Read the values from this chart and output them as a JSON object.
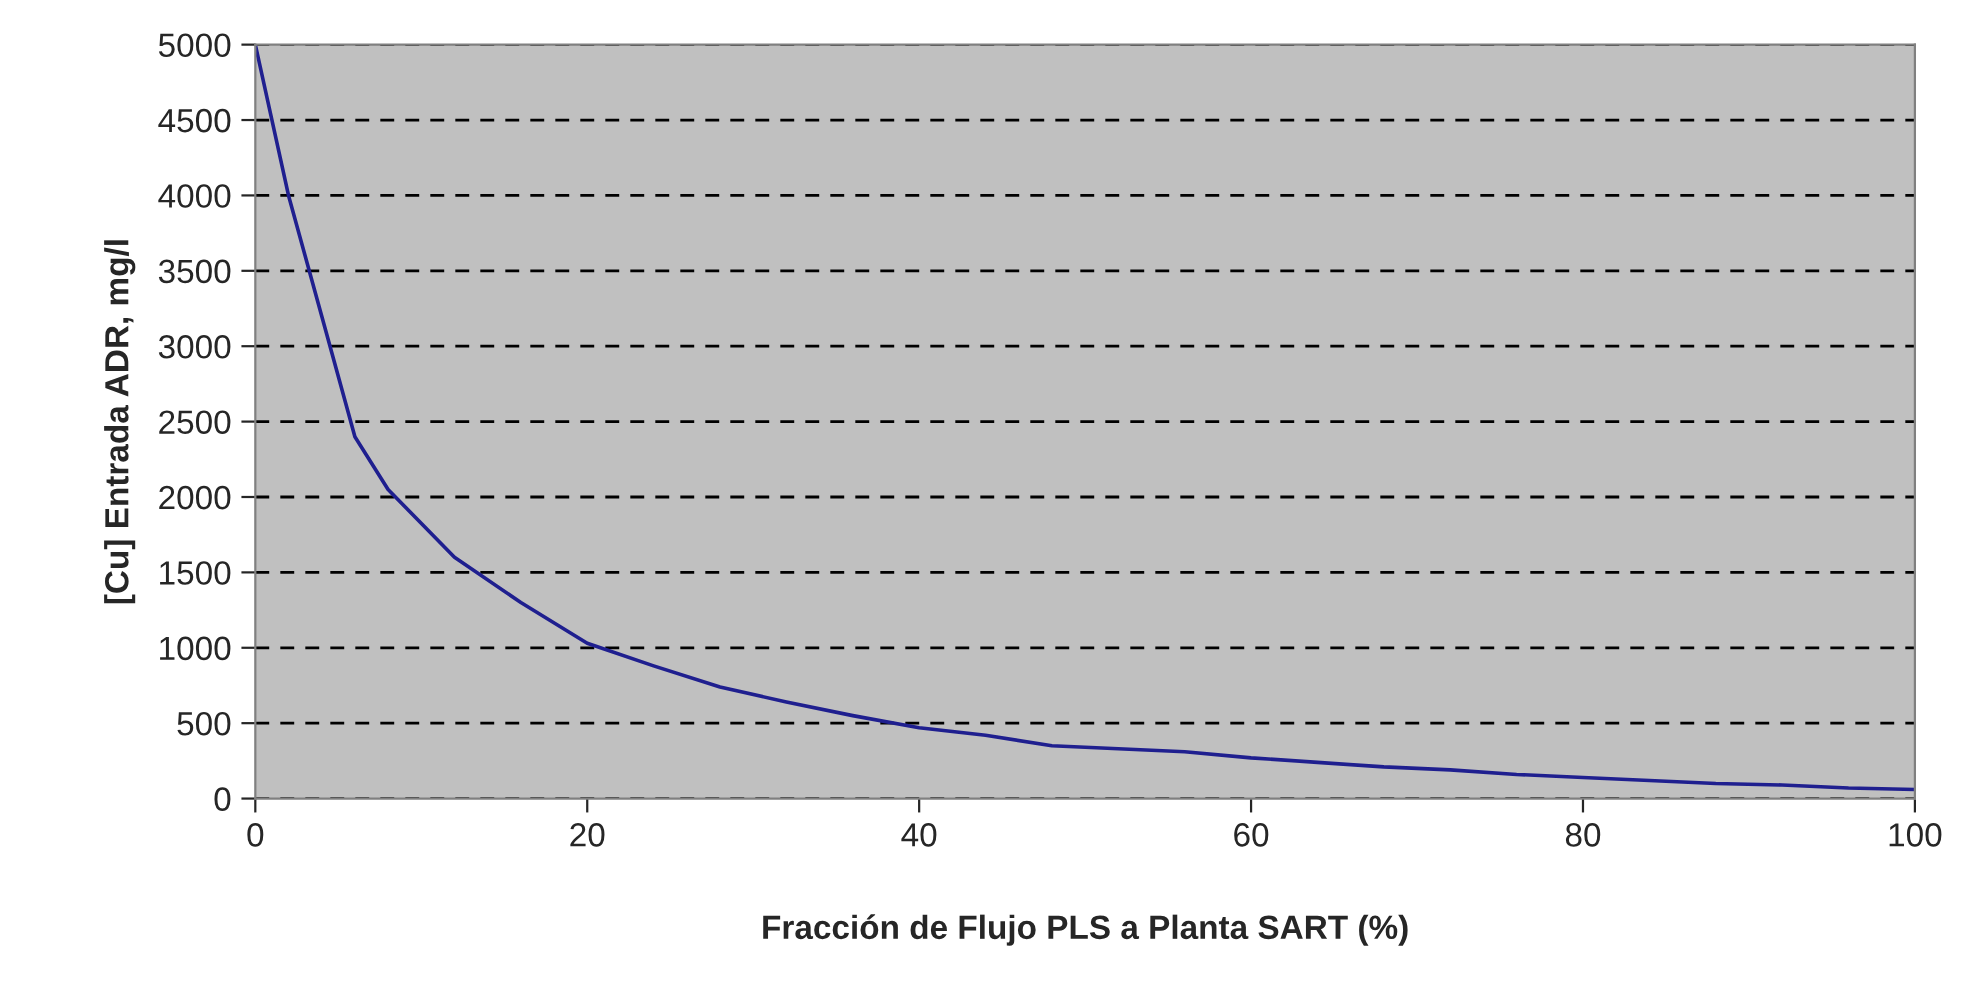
{
  "chart_data": {
    "type": "line",
    "xlabel": "Fracción de Flujo PLS a Planta SART (%)",
    "ylabel": "[Cu] Entrada ADR, mg/l",
    "x": [
      0,
      2,
      4,
      6,
      8,
      12,
      16,
      20,
      24,
      28,
      32,
      36,
      40,
      44,
      48,
      52,
      56,
      60,
      64,
      68,
      72,
      76,
      80,
      84,
      88,
      92,
      96,
      100
    ],
    "series": [
      {
        "color": "#1f1f8f",
        "values": [
          5000,
          4000,
          3200,
          2400,
          2050,
          1600,
          1300,
          1030,
          880,
          740,
          640,
          550,
          470,
          420,
          350,
          330,
          310,
          270,
          240,
          210,
          190,
          160,
          140,
          120,
          100,
          90,
          70,
          60
        ]
      }
    ],
    "xlim": [
      0,
      100
    ],
    "xticks": [
      0,
      20,
      40,
      60,
      80,
      100
    ],
    "ylim": [
      0,
      5000
    ],
    "yticks": [
      0,
      500,
      1000,
      1500,
      2000,
      2500,
      3000,
      3500,
      4000,
      4500,
      5000
    ],
    "grid": "y",
    "marker": "none",
    "line_style": "solid"
  }
}
